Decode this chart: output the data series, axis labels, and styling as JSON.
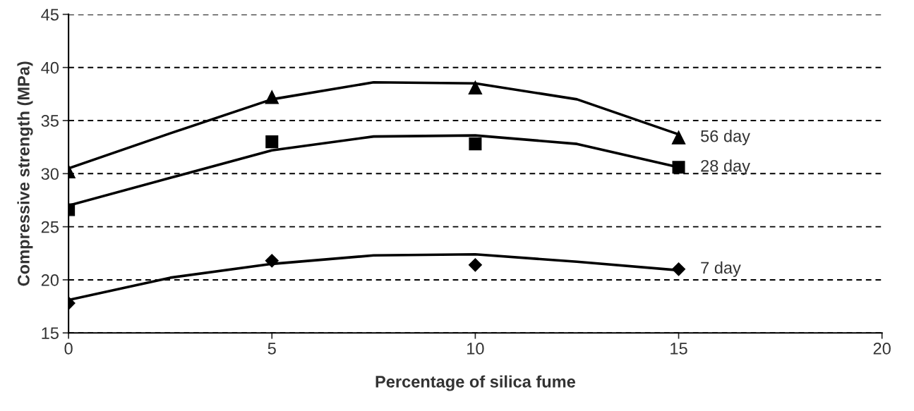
{
  "chart_data": {
    "type": "scatter",
    "xlabel": "Percentage of silica fume",
    "ylabel": "Compressive strength (MPa)",
    "xlim": [
      0,
      20
    ],
    "xticks": [
      0,
      5,
      10,
      15,
      20
    ],
    "ylim": [
      15,
      45
    ],
    "yticks": [
      15,
      20,
      25,
      30,
      35,
      40,
      45
    ],
    "grid": "y",
    "x": [
      0,
      5,
      10,
      15
    ],
    "series": [
      {
        "name": "56 day",
        "color": "#000000",
        "marker": "triangle",
        "values": [
          30.2,
          37.2,
          38.1,
          33.4
        ]
      },
      {
        "name": "28 day",
        "color": "#000000",
        "marker": "square",
        "values": [
          26.6,
          33.0,
          32.8,
          30.6
        ]
      },
      {
        "name": "7 day",
        "color": "#000000",
        "marker": "diamond",
        "values": [
          17.8,
          21.8,
          21.4,
          21.0
        ]
      },
      {
        "type": "line",
        "color": "#000000",
        "line_style": "solid",
        "x": [
          0,
          2.5,
          5,
          7.5,
          10,
          12.5,
          15
        ],
        "values": [
          30.5,
          33.8,
          37.0,
          38.6,
          38.5,
          37.0,
          33.7
        ]
      },
      {
        "type": "line",
        "color": "#000000",
        "line_style": "solid",
        "x": [
          0,
          2.5,
          5,
          7.5,
          10,
          12.5,
          15
        ],
        "values": [
          27.0,
          29.6,
          32.2,
          33.5,
          33.6,
          32.8,
          30.6
        ]
      },
      {
        "type": "line",
        "color": "#000000",
        "line_style": "solid",
        "x": [
          0,
          2.5,
          5,
          7.5,
          10,
          12.5,
          15
        ],
        "values": [
          18.1,
          20.2,
          21.5,
          22.3,
          22.4,
          21.7,
          20.9
        ]
      }
    ]
  }
}
